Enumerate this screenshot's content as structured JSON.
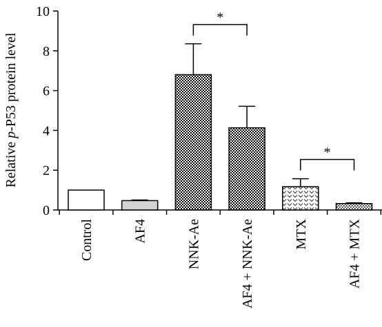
{
  "chart_data": {
    "type": "bar",
    "categories": [
      "Control",
      "AF4",
      "NNK-Ae",
      "AF4 + NNK-Ae",
      "MTX",
      "AF4 + MTX"
    ],
    "values": [
      1.0,
      0.47,
      6.8,
      4.13,
      1.17,
      0.32
    ],
    "errors": [
      0,
      0.03,
      1.55,
      1.08,
      0.4,
      0.04
    ],
    "ylabel_prefix": "Relative ",
    "ylabel_italic": "p",
    "ylabel_suffix": "-P53 protein level",
    "ylim": [
      0,
      10
    ],
    "yticks": [
      0,
      2,
      4,
      6,
      8,
      10
    ],
    "fills": [
      "white",
      "lightgray",
      "checker-dense",
      "checker-dense",
      "chevron",
      "dots"
    ],
    "significance": [
      {
        "from": "NNK-Ae",
        "to": "AF4 + NNK-Ae",
        "label": "*"
      },
      {
        "from": "MTX",
        "to": "AF4 + MTX",
        "label": "*"
      }
    ],
    "grid": false,
    "legend": "none"
  }
}
